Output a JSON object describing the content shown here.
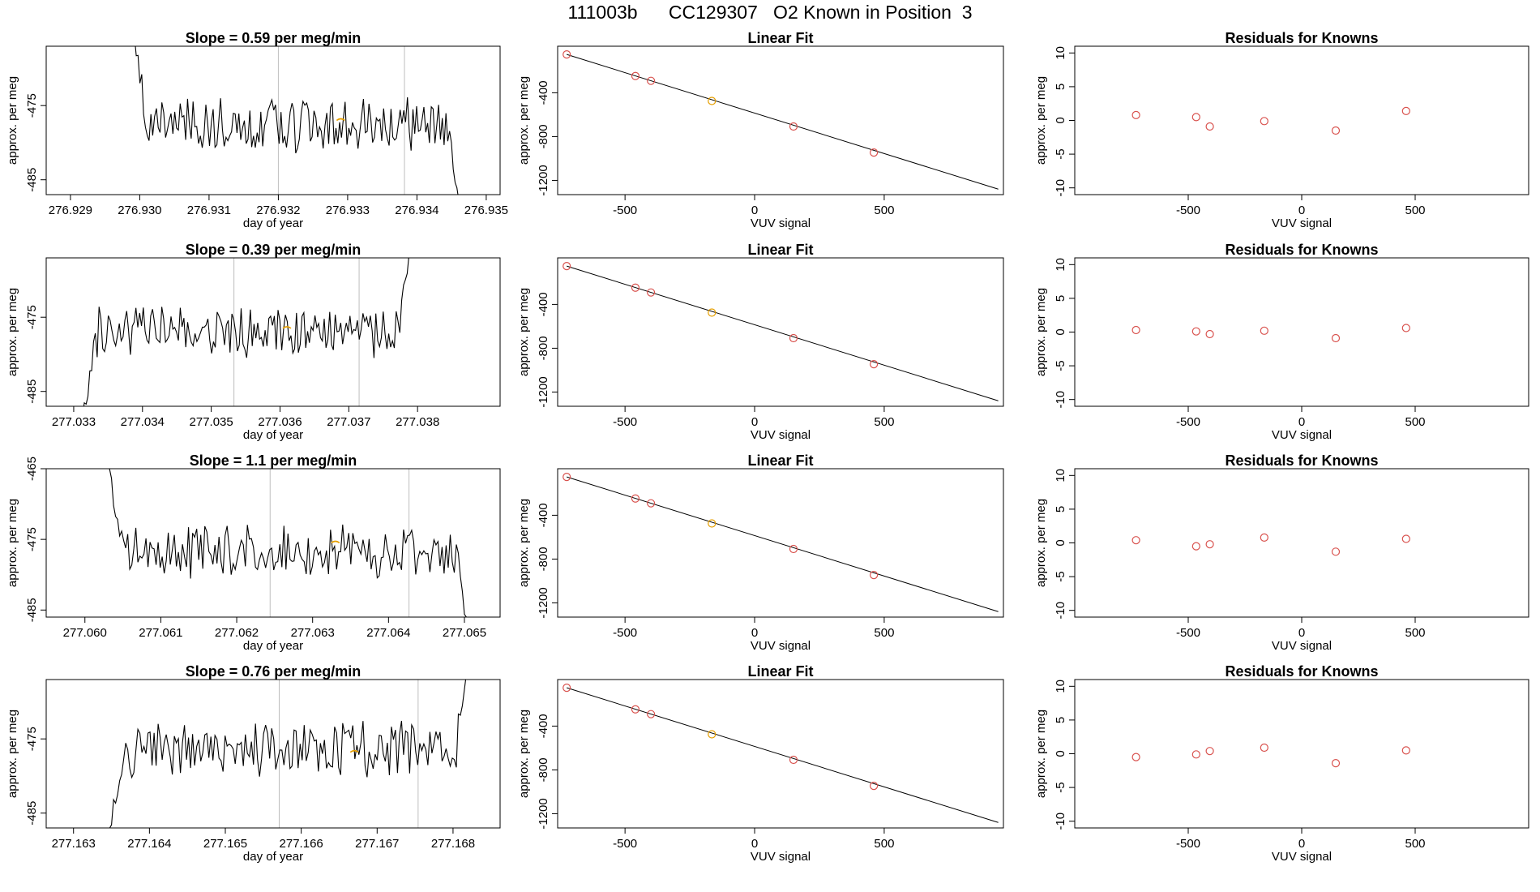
{
  "page_title": "111003b      CC129307   O2 Known in Position  3",
  "style": {
    "trace_color": "#000000",
    "grid_color": "#bebebe",
    "fit_point_color": "#d9534f",
    "highlight_color": "#e69f00",
    "axis_color": "#000000"
  },
  "chart_data": [
    {
      "type": "line",
      "title": "Slope =  0.59  per meg/min",
      "xlabel": "day of year",
      "ylabel": "approx. per meg",
      "xlim": [
        276.92865,
        276.9352
      ],
      "ylim": [
        -487,
        -467
      ],
      "xticks": [
        {
          "v": 276.929,
          "l": "276.929"
        },
        {
          "v": 276.93,
          "l": "276.930"
        },
        {
          "v": 276.931,
          "l": "276.931"
        },
        {
          "v": 276.932,
          "l": "276.932"
        },
        {
          "v": 276.933,
          "l": "276.933"
        },
        {
          "v": 276.934,
          "l": "276.934"
        },
        {
          "v": 276.935,
          "l": "276.935"
        }
      ],
      "yticks": [
        {
          "v": -475,
          "l": "-475"
        },
        {
          "v": -485,
          "l": "-485"
        }
      ],
      "vlines": [
        276.932,
        276.93382
      ],
      "series": {
        "x_start": 276.92987,
        "x_end": 276.93463,
        "y_start": -462,
        "y_end": -490,
        "mean": -477.5,
        "amplitude": 2.2,
        "seed": 3
      },
      "highlight_point": {
        "x": 276.9329,
        "y": -477
      }
    },
    {
      "type": "scatter",
      "title": "Linear Fit",
      "xlabel": "VUV signal",
      "ylabel": "approx. per meg",
      "xlim": [
        -760,
        960
      ],
      "ylim": [
        -1330,
        25
      ],
      "xticks": [
        {
          "v": -500,
          "l": "-500"
        },
        {
          "v": 0,
          "l": "0"
        },
        {
          "v": 500,
          "l": "500"
        }
      ],
      "yticks": [
        {
          "v": -400,
          "l": "-400"
        },
        {
          "v": -800,
          "l": "-800"
        },
        {
          "v": -1200,
          "l": "-1200"
        }
      ],
      "fit_line": {
        "x": [
          -725,
          940
        ],
        "y": [
          -50,
          -1280
        ]
      },
      "points": [
        {
          "x": -725,
          "y": -50
        },
        {
          "x": -460,
          "y": -247
        },
        {
          "x": -400,
          "y": -291
        },
        {
          "x": -165,
          "y": -475
        },
        {
          "x": 150,
          "y": -708
        },
        {
          "x": 460,
          "y": -946
        }
      ],
      "highlight_index": 3
    },
    {
      "type": "scatter",
      "title": "Residuals for Knowns",
      "xlabel": "VUV signal",
      "ylabel": "approx. per meg",
      "xlim": [
        -1000,
        1000
      ],
      "ylim": [
        -11,
        11
      ],
      "xticks": [
        {
          "v": -500,
          "l": "-500"
        },
        {
          "v": 0,
          "l": "0"
        },
        {
          "v": 500,
          "l": "500"
        }
      ],
      "yticks": [
        {
          "v": 10,
          "l": "10"
        },
        {
          "v": 5,
          "l": "5"
        },
        {
          "v": 0,
          "l": "0"
        },
        {
          "v": -5,
          "l": "-5"
        },
        {
          "v": -10,
          "l": "-10"
        }
      ],
      "points": [
        {
          "x": -730,
          "y": 0.8
        },
        {
          "x": -465,
          "y": 0.5
        },
        {
          "x": -405,
          "y": -0.9
        },
        {
          "x": -165,
          "y": -0.1
        },
        {
          "x": 150,
          "y": -1.5
        },
        {
          "x": 460,
          "y": 1.4
        }
      ]
    },
    {
      "type": "line",
      "title": "Slope =  0.39  per meg/min",
      "xlabel": "day of year",
      "ylabel": "approx. per meg",
      "xlim": [
        277.0326,
        277.0392
      ],
      "ylim": [
        -487,
        -467
      ],
      "xticks": [
        {
          "v": 277.033,
          "l": "277.033"
        },
        {
          "v": 277.034,
          "l": "277.034"
        },
        {
          "v": 277.035,
          "l": "277.035"
        },
        {
          "v": 277.036,
          "l": "277.036"
        },
        {
          "v": 277.037,
          "l": "277.037"
        },
        {
          "v": 277.038,
          "l": "277.038"
        }
      ],
      "yticks": [
        {
          "v": -475,
          "l": "-475"
        },
        {
          "v": -485,
          "l": "-485"
        }
      ],
      "vlines": [
        277.03533,
        277.03715
      ],
      "series": {
        "x_start": 277.0331,
        "x_end": 277.03793,
        "y_start": -490,
        "y_end": -462,
        "mean": -477.0,
        "amplitude": 2.0,
        "seed": 11
      },
      "highlight_point": {
        "x": 277.0361,
        "y": -476.5
      }
    },
    {
      "type": "scatter",
      "title": "Linear Fit",
      "xlabel": "VUV signal",
      "ylabel": "approx. per meg",
      "xlim": [
        -760,
        960
      ],
      "ylim": [
        -1330,
        25
      ],
      "xticks": [
        {
          "v": -500,
          "l": "-500"
        },
        {
          "v": 0,
          "l": "0"
        },
        {
          "v": 500,
          "l": "500"
        }
      ],
      "yticks": [
        {
          "v": -400,
          "l": "-400"
        },
        {
          "v": -800,
          "l": "-800"
        },
        {
          "v": -1200,
          "l": "-1200"
        }
      ],
      "fit_line": {
        "x": [
          -725,
          940
        ],
        "y": [
          -50,
          -1280
        ]
      },
      "points": [
        {
          "x": -725,
          "y": -50
        },
        {
          "x": -460,
          "y": -247
        },
        {
          "x": -400,
          "y": -291
        },
        {
          "x": -165,
          "y": -475
        },
        {
          "x": 150,
          "y": -708
        },
        {
          "x": 460,
          "y": -946
        }
      ],
      "highlight_index": 3
    },
    {
      "type": "scatter",
      "title": "Residuals for Knowns",
      "xlabel": "VUV signal",
      "ylabel": "approx. per meg",
      "xlim": [
        -1000,
        1000
      ],
      "ylim": [
        -11,
        11
      ],
      "xticks": [
        {
          "v": -500,
          "l": "-500"
        },
        {
          "v": 0,
          "l": "0"
        },
        {
          "v": 500,
          "l": "500"
        }
      ],
      "yticks": [
        {
          "v": 10,
          "l": "10"
        },
        {
          "v": 5,
          "l": "5"
        },
        {
          "v": 0,
          "l": "0"
        },
        {
          "v": -5,
          "l": "-5"
        },
        {
          "v": -10,
          "l": "-10"
        }
      ],
      "points": [
        {
          "x": -730,
          "y": 0.3
        },
        {
          "x": -465,
          "y": 0.1
        },
        {
          "x": -405,
          "y": -0.3
        },
        {
          "x": -165,
          "y": 0.2
        },
        {
          "x": 150,
          "y": -0.9
        },
        {
          "x": 460,
          "y": 0.6
        }
      ]
    },
    {
      "type": "line",
      "title": "Slope =  1.1  per meg/min",
      "xlabel": "day of year",
      "ylabel": "approx. per meg",
      "xlim": [
        277.05949,
        277.06547
      ],
      "ylim": [
        -486,
        -465
      ],
      "xticks": [
        {
          "v": 277.06,
          "l": "277.060"
        },
        {
          "v": 277.061,
          "l": "277.061"
        },
        {
          "v": 277.062,
          "l": "277.062"
        },
        {
          "v": 277.063,
          "l": "277.063"
        },
        {
          "v": 277.064,
          "l": "277.064"
        },
        {
          "v": 277.065,
          "l": "277.065"
        }
      ],
      "yticks": [
        {
          "v": -465,
          "l": "-465"
        },
        {
          "v": -475,
          "l": "-475"
        },
        {
          "v": -485,
          "l": "-485"
        }
      ],
      "vlines": [
        277.06244,
        277.06427
      ],
      "series": {
        "x_start": 277.06027,
        "x_end": 277.06508,
        "y_start": -462,
        "y_end": -490,
        "mean": -476.5,
        "amplitude": 2.2,
        "seed": 23
      },
      "highlight_point": {
        "x": 277.0633,
        "y": -475.5
      }
    },
    {
      "type": "scatter",
      "title": "Linear Fit",
      "xlabel": "VUV signal",
      "ylabel": "approx. per meg",
      "xlim": [
        -760,
        960
      ],
      "ylim": [
        -1330,
        25
      ],
      "xticks": [
        {
          "v": -500,
          "l": "-500"
        },
        {
          "v": 0,
          "l": "0"
        },
        {
          "v": 500,
          "l": "500"
        }
      ],
      "yticks": [
        {
          "v": -400,
          "l": "-400"
        },
        {
          "v": -800,
          "l": "-800"
        },
        {
          "v": -1200,
          "l": "-1200"
        }
      ],
      "fit_line": {
        "x": [
          -725,
          940
        ],
        "y": [
          -50,
          -1280
        ]
      },
      "points": [
        {
          "x": -725,
          "y": -50
        },
        {
          "x": -460,
          "y": -247
        },
        {
          "x": -400,
          "y": -291
        },
        {
          "x": -165,
          "y": -475
        },
        {
          "x": 150,
          "y": -708
        },
        {
          "x": 460,
          "y": -946
        }
      ],
      "highlight_index": 3
    },
    {
      "type": "scatter",
      "title": "Residuals for Knowns",
      "xlabel": "VUV signal",
      "ylabel": "approx. per meg",
      "xlim": [
        -1000,
        1000
      ],
      "ylim": [
        -11,
        11
      ],
      "xticks": [
        {
          "v": -500,
          "l": "-500"
        },
        {
          "v": 0,
          "l": "0"
        },
        {
          "v": 500,
          "l": "500"
        }
      ],
      "yticks": [
        {
          "v": 10,
          "l": "10"
        },
        {
          "v": 5,
          "l": "5"
        },
        {
          "v": 0,
          "l": "0"
        },
        {
          "v": -5,
          "l": "-5"
        },
        {
          "v": -10,
          "l": "-10"
        }
      ],
      "points": [
        {
          "x": -730,
          "y": 0.4
        },
        {
          "x": -465,
          "y": -0.5
        },
        {
          "x": -405,
          "y": -0.2
        },
        {
          "x": -165,
          "y": 0.8
        },
        {
          "x": 150,
          "y": -1.3
        },
        {
          "x": 460,
          "y": 0.6
        }
      ]
    },
    {
      "type": "line",
      "title": "Slope =  0.76  per meg/min",
      "xlabel": "day of year",
      "ylabel": "approx. per meg",
      "xlim": [
        277.16264,
        277.16862
      ],
      "ylim": [
        -487,
        -467
      ],
      "xticks": [
        {
          "v": 277.163,
          "l": "277.163"
        },
        {
          "v": 277.164,
          "l": "277.164"
        },
        {
          "v": 277.165,
          "l": "277.165"
        },
        {
          "v": 277.166,
          "l": "277.166"
        },
        {
          "v": 277.167,
          "l": "277.167"
        },
        {
          "v": 277.168,
          "l": "277.168"
        }
      ],
      "yticks": [
        {
          "v": -475,
          "l": "-475"
        },
        {
          "v": -485,
          "l": "-485"
        }
      ],
      "vlines": [
        277.16571,
        277.16754
      ],
      "series": {
        "x_start": 277.16342,
        "x_end": 277.16823,
        "y_start": -490,
        "y_end": -462,
        "mean": -476.5,
        "amplitude": 2.1,
        "seed": 37
      },
      "highlight_point": {
        "x": 277.1667,
        "y": -476.8
      }
    },
    {
      "type": "scatter",
      "title": "Linear Fit",
      "xlabel": "VUV signal",
      "ylabel": "approx. per meg",
      "xlim": [
        -760,
        960
      ],
      "ylim": [
        -1330,
        25
      ],
      "xticks": [
        {
          "v": -500,
          "l": "-500"
        },
        {
          "v": 0,
          "l": "0"
        },
        {
          "v": 500,
          "l": "500"
        }
      ],
      "yticks": [
        {
          "v": -400,
          "l": "-400"
        },
        {
          "v": -800,
          "l": "-800"
        },
        {
          "v": -1200,
          "l": "-1200"
        }
      ],
      "fit_line": {
        "x": [
          -725,
          940
        ],
        "y": [
          -50,
          -1280
        ]
      },
      "points": [
        {
          "x": -725,
          "y": -50
        },
        {
          "x": -460,
          "y": -247
        },
        {
          "x": -400,
          "y": -291
        },
        {
          "x": -165,
          "y": -475
        },
        {
          "x": 150,
          "y": -708
        },
        {
          "x": 460,
          "y": -946
        }
      ],
      "highlight_index": 3
    },
    {
      "type": "scatter",
      "title": "Residuals for Knowns",
      "xlabel": "VUV signal",
      "ylabel": "approx. per meg",
      "xlim": [
        -1000,
        1000
      ],
      "ylim": [
        -11,
        11
      ],
      "xticks": [
        {
          "v": -500,
          "l": "-500"
        },
        {
          "v": 0,
          "l": "0"
        },
        {
          "v": 500,
          "l": "500"
        }
      ],
      "yticks": [
        {
          "v": 10,
          "l": "10"
        },
        {
          "v": 5,
          "l": "5"
        },
        {
          "v": 0,
          "l": "0"
        },
        {
          "v": -5,
          "l": "-5"
        },
        {
          "v": -10,
          "l": "-10"
        }
      ],
      "points": [
        {
          "x": -730,
          "y": -0.5
        },
        {
          "x": -465,
          "y": -0.1
        },
        {
          "x": -405,
          "y": 0.4
        },
        {
          "x": -165,
          "y": 0.9
        },
        {
          "x": 150,
          "y": -1.4
        },
        {
          "x": 460,
          "y": 0.5
        }
      ]
    }
  ]
}
